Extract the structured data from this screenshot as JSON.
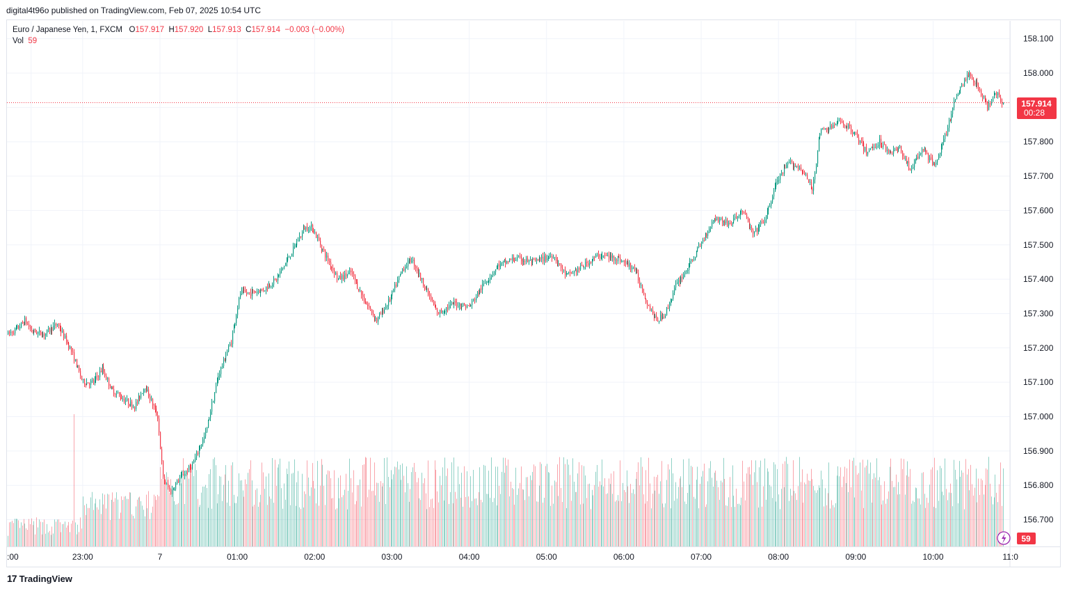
{
  "header": {
    "published_text": "digital4t96o published on TradingView.com, Feb 07, 2025 10:54 UTC"
  },
  "legend": {
    "symbol": "Euro / Japanese Yen, 1, FXCM",
    "open_label": "O",
    "open": "157.917",
    "high_label": "H",
    "high": "157.920",
    "low_label": "L",
    "low": "157.913",
    "close_label": "C",
    "close": "157.914",
    "change": "−0.003 (−0.00%)",
    "vol_label": "Vol",
    "vol_value": "59"
  },
  "price_tag": {
    "price": "157.914",
    "countdown": "00:28"
  },
  "volume_tag": "59",
  "footer": {
    "brand": "TradingView",
    "logo_glyph": "17"
  },
  "colors": {
    "up": "#089981",
    "down": "#f23645",
    "grid": "#f0f3fa",
    "text": "#131722"
  },
  "chart_data": {
    "type": "candlestick",
    "symbol": "EUR/JPY",
    "interval": "1",
    "yaxis": {
      "ticks": [
        156.7,
        156.8,
        156.9,
        157.0,
        157.1,
        157.2,
        157.3,
        157.4,
        157.5,
        157.6,
        157.7,
        157.8,
        157.9,
        158.0,
        158.1
      ],
      "tick_labels": [
        "156.700",
        "156.800",
        "156.900",
        "157.000",
        "157.100",
        "157.200",
        "157.300",
        "157.400",
        "157.500",
        "157.600",
        "157.700",
        "157.800",
        "157.900",
        "158.000",
        "158.100"
      ],
      "ylim": [
        156.69,
        158.13
      ]
    },
    "xaxis": {
      "tick_labels": [
        ":00",
        "23:00",
        "7",
        "01:00",
        "02:00",
        "03:00",
        "04:00",
        "05:00",
        "06:00",
        "07:00",
        "08:00",
        "09:00",
        "10:00",
        "11:0"
      ],
      "tick_minutes": [
        -100,
        -60,
        0,
        60,
        120,
        180,
        240,
        300,
        360,
        420,
        480,
        540,
        600,
        660
      ]
    },
    "last_price": 157.914,
    "price_path": [
      {
        "t": -120,
        "p": 157.17
      },
      {
        "t": -118,
        "p": 157.24
      },
      {
        "t": -110,
        "p": 157.26
      },
      {
        "t": -105,
        "p": 157.28
      },
      {
        "t": -100,
        "p": 157.25
      },
      {
        "t": -90,
        "p": 157.24
      },
      {
        "t": -80,
        "p": 157.27
      },
      {
        "t": -70,
        "p": 157.2
      },
      {
        "t": -60,
        "p": 157.1
      },
      {
        "t": -52,
        "p": 157.1
      },
      {
        "t": -45,
        "p": 157.14
      },
      {
        "t": -38,
        "p": 157.08
      },
      {
        "t": -28,
        "p": 157.05
      },
      {
        "t": -20,
        "p": 157.03
      },
      {
        "t": -12,
        "p": 157.09
      },
      {
        "t": -2,
        "p": 157.0
      },
      {
        "t": 2,
        "p": 156.82
      },
      {
        "t": 8,
        "p": 156.78
      },
      {
        "t": 15,
        "p": 156.82
      },
      {
        "t": 25,
        "p": 156.86
      },
      {
        "t": 35,
        "p": 156.95
      },
      {
        "t": 45,
        "p": 157.12
      },
      {
        "t": 55,
        "p": 157.22
      },
      {
        "t": 62,
        "p": 157.36
      },
      {
        "t": 70,
        "p": 157.36
      },
      {
        "t": 80,
        "p": 157.37
      },
      {
        "t": 90,
        "p": 157.4
      },
      {
        "t": 102,
        "p": 157.48
      },
      {
        "t": 112,
        "p": 157.55
      },
      {
        "t": 118,
        "p": 157.55
      },
      {
        "t": 128,
        "p": 157.47
      },
      {
        "t": 138,
        "p": 157.4
      },
      {
        "t": 148,
        "p": 157.42
      },
      {
        "t": 158,
        "p": 157.34
      },
      {
        "t": 168,
        "p": 157.28
      },
      {
        "t": 178,
        "p": 157.34
      },
      {
        "t": 188,
        "p": 157.43
      },
      {
        "t": 195,
        "p": 157.46
      },
      {
        "t": 205,
        "p": 157.38
      },
      {
        "t": 215,
        "p": 157.3
      },
      {
        "t": 228,
        "p": 157.33
      },
      {
        "t": 240,
        "p": 157.32
      },
      {
        "t": 250,
        "p": 157.38
      },
      {
        "t": 262,
        "p": 157.44
      },
      {
        "t": 275,
        "p": 157.46
      },
      {
        "t": 290,
        "p": 157.45
      },
      {
        "t": 305,
        "p": 157.47
      },
      {
        "t": 315,
        "p": 157.41
      },
      {
        "t": 325,
        "p": 157.43
      },
      {
        "t": 340,
        "p": 157.47
      },
      {
        "t": 355,
        "p": 157.46
      },
      {
        "t": 368,
        "p": 157.43
      },
      {
        "t": 378,
        "p": 157.33
      },
      {
        "t": 385,
        "p": 157.28
      },
      {
        "t": 392,
        "p": 157.3
      },
      {
        "t": 400,
        "p": 157.38
      },
      {
        "t": 412,
        "p": 157.45
      },
      {
        "t": 422,
        "p": 157.52
      },
      {
        "t": 430,
        "p": 157.58
      },
      {
        "t": 442,
        "p": 157.56
      },
      {
        "t": 452,
        "p": 157.6
      },
      {
        "t": 460,
        "p": 157.53
      },
      {
        "t": 470,
        "p": 157.58
      },
      {
        "t": 478,
        "p": 157.68
      },
      {
        "t": 488,
        "p": 157.74
      },
      {
        "t": 498,
        "p": 157.72
      },
      {
        "t": 506,
        "p": 157.66
      },
      {
        "t": 512,
        "p": 157.83
      },
      {
        "t": 520,
        "p": 157.84
      },
      {
        "t": 528,
        "p": 157.86
      },
      {
        "t": 538,
        "p": 157.83
      },
      {
        "t": 548,
        "p": 157.77
      },
      {
        "t": 558,
        "p": 157.8
      },
      {
        "t": 566,
        "p": 157.77
      },
      {
        "t": 574,
        "p": 157.78
      },
      {
        "t": 582,
        "p": 157.72
      },
      {
        "t": 592,
        "p": 157.78
      },
      {
        "t": 600,
        "p": 157.73
      },
      {
        "t": 608,
        "p": 157.8
      },
      {
        "t": 618,
        "p": 157.94
      },
      {
        "t": 628,
        "p": 158.0
      },
      {
        "t": 636,
        "p": 157.95
      },
      {
        "t": 642,
        "p": 157.9
      },
      {
        "t": 648,
        "p": 157.95
      },
      {
        "t": 654,
        "p": 157.91
      }
    ],
    "volume_last": 59,
    "volume_spikes": [
      {
        "t": -67,
        "v": 100
      },
      {
        "t": 0,
        "v": 60
      }
    ]
  }
}
